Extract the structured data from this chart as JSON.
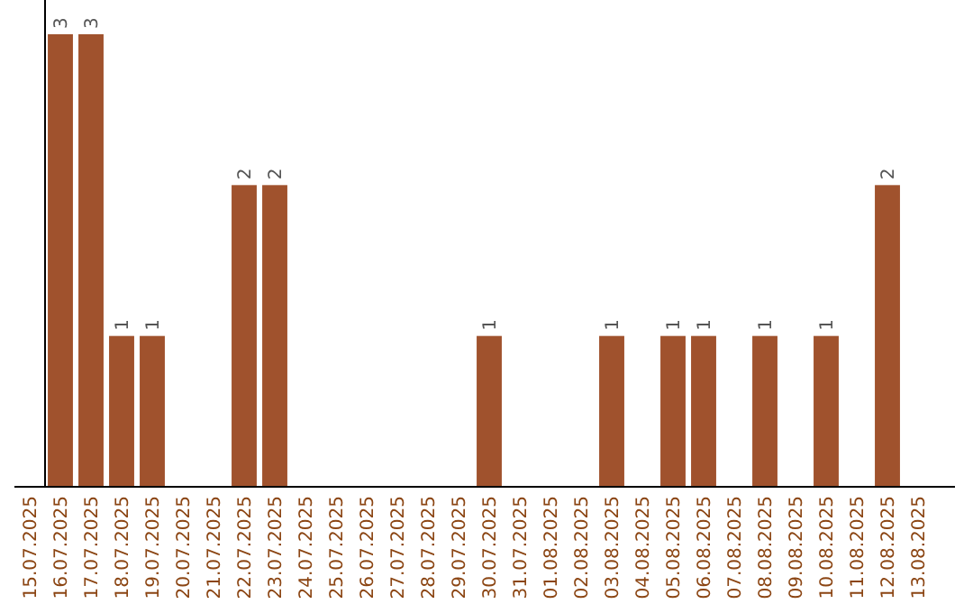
{
  "chart_data": {
    "type": "bar",
    "categories": [
      "15.07.2025",
      "16.07.2025",
      "17.07.2025",
      "18.07.2025",
      "19.07.2025",
      "20.07.2025",
      "21.07.2025",
      "22.07.2025",
      "23.07.2025",
      "24.07.2025",
      "25.07.2025",
      "26.07.2025",
      "27.07.2025",
      "28.07.2025",
      "29.07.2025",
      "30.07.2025",
      "31.07.2025",
      "01.08.2025",
      "02.08.2025",
      "03.08.2025",
      "04.08.2025",
      "05.08.2025",
      "06.08.2025",
      "07.08.2025",
      "08.08.2025",
      "09.08.2025",
      "10.08.2025",
      "11.08.2025",
      "12.08.2025",
      "13.08.2025"
    ],
    "values": [
      0,
      3,
      3,
      1,
      1,
      0,
      0,
      2,
      2,
      0,
      0,
      0,
      0,
      0,
      0,
      1,
      0,
      0,
      0,
      1,
      0,
      1,
      1,
      0,
      1,
      0,
      1,
      0,
      2,
      0
    ],
    "value_labels": [
      null,
      "3",
      "3",
      "1",
      "1",
      null,
      null,
      "2",
      "2",
      null,
      null,
      null,
      null,
      null,
      null,
      "1",
      null,
      null,
      null,
      "1",
      null,
      "1",
      "1",
      null,
      "1",
      null,
      "1",
      null,
      "2",
      null
    ],
    "color": "#a0522d"
  }
}
